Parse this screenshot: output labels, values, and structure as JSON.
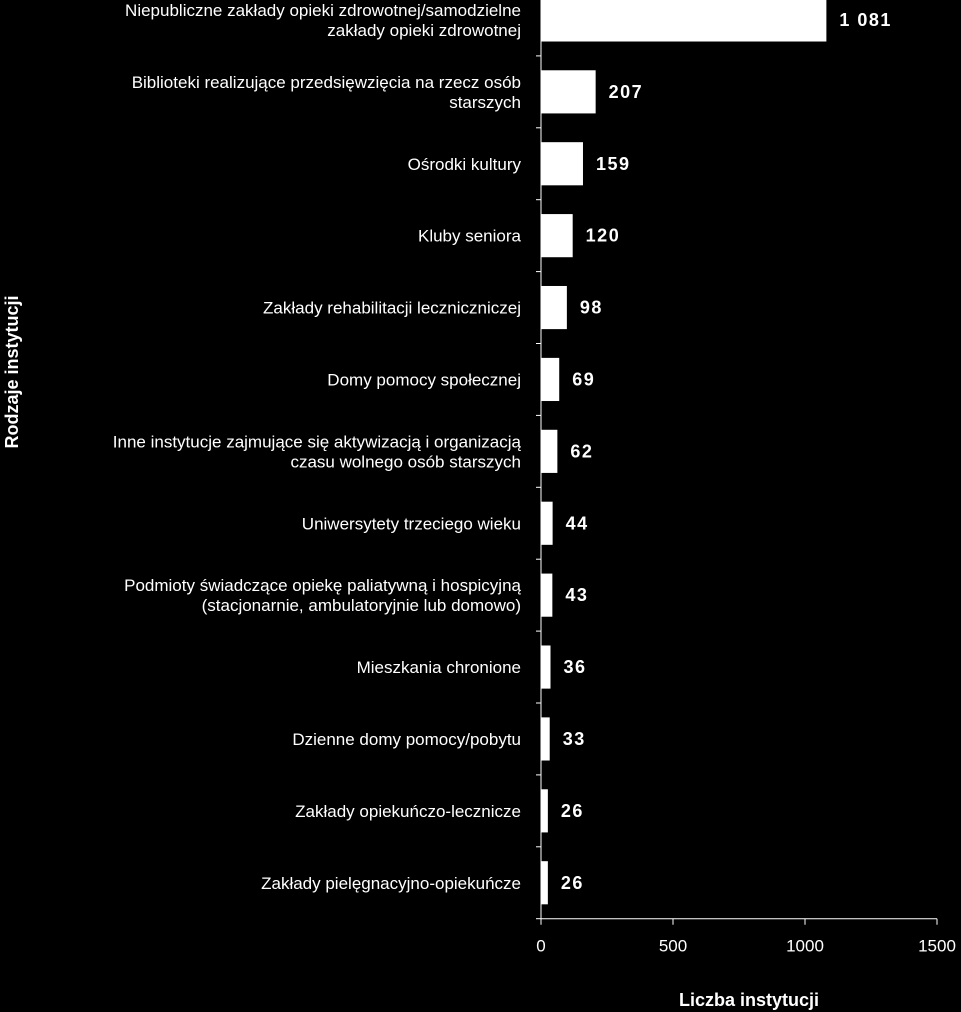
{
  "chart_data": {
    "type": "bar",
    "orientation": "horizontal",
    "categories": [
      [
        "Niepubliczne zakłady opieki zdrowotnej/samodzielne",
        "zakłady opieki zdrowotnej"
      ],
      [
        "Biblioteki realizujące przedsięwzięcia na rzecz osób",
        "starszych"
      ],
      [
        "Ośrodki kultury"
      ],
      [
        "Kluby seniora"
      ],
      [
        "Zakłady rehabilitacji leczniczniczej"
      ],
      [
        "Domy pomocy społecznej"
      ],
      [
        "Inne instytucje zajmujące się aktywizacją i organizacją",
        "czasu wolnego osób starszych"
      ],
      [
        "Uniwersytety trzeciego wieku"
      ],
      [
        "Podmioty świadczące opiekę paliatywną i hospicyjną",
        "(stacjonarnie, ambulatoryjnie lub domowo)"
      ],
      [
        "Mieszkania chronione"
      ],
      [
        "Dzienne domy pomocy/pobytu"
      ],
      [
        "Zakłady opiekuńczo-lecznicze"
      ],
      [
        "Zakłady pielęgnacyjno-opiekuńcze"
      ]
    ],
    "values": [
      1081,
      207,
      159,
      120,
      98,
      69,
      62,
      44,
      43,
      36,
      33,
      26,
      26
    ],
    "value_labels": [
      "1 081",
      "207",
      "159",
      "120",
      "98",
      "69",
      "62",
      "44",
      "43",
      "36",
      "33",
      "26",
      "26"
    ],
    "xlim": [
      0,
      1500
    ],
    "xticks": [
      0,
      500,
      1000,
      1500
    ],
    "xlabel": "Liczba instytucji",
    "ylabel": "Rodzaje instytucji",
    "title": "",
    "grid": false,
    "legend": "none",
    "colors": {
      "background": "#000000",
      "bar": "#ffffff",
      "text": "#ffffff",
      "axis": "#ffffff"
    }
  }
}
